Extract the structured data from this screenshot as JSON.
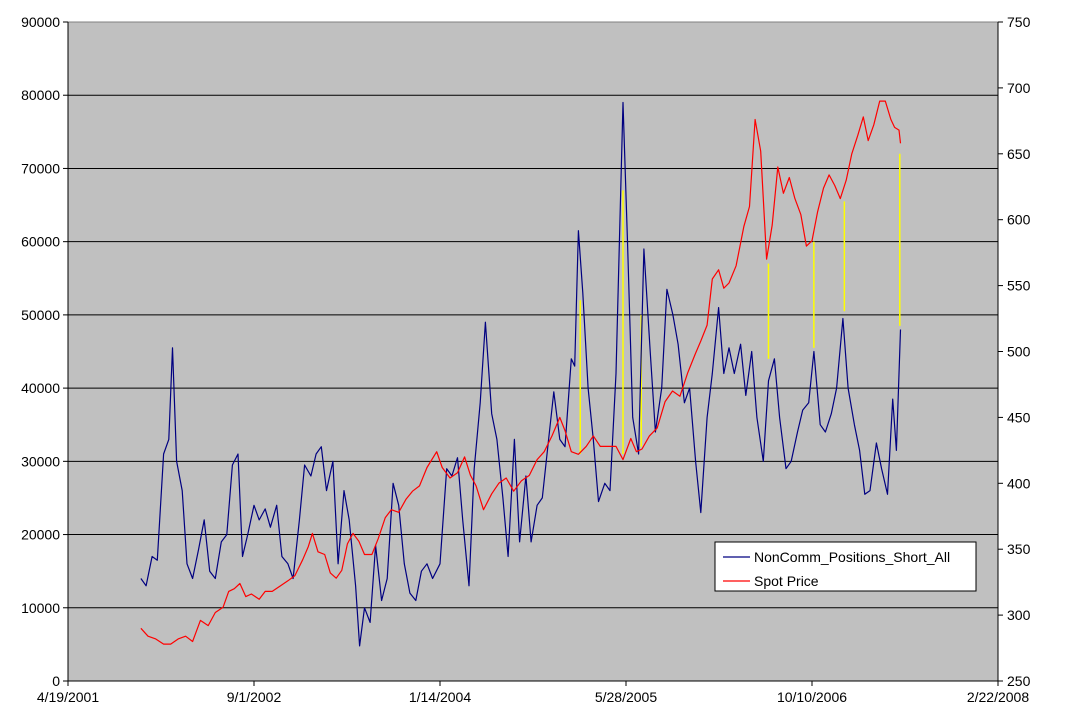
{
  "chart_data": {
    "type": "line",
    "title": "",
    "xlabel": "",
    "ylabel": "",
    "x_ticks": [
      "4/19/2001",
      "9/1/2002",
      "1/14/2004",
      "5/28/2005",
      "10/10/2006",
      "2/22/2008"
    ],
    "xlim": [
      "4/19/2001",
      "2/22/2008"
    ],
    "ylim_left": [
      0,
      90000
    ],
    "ylim_right": [
      250,
      750
    ],
    "y_ticks_left": [
      "0",
      "10000",
      "20000",
      "30000",
      "40000",
      "50000",
      "60000",
      "70000",
      "80000",
      "90000"
    ],
    "y_ticks_right": [
      "250",
      "300",
      "350",
      "400",
      "450",
      "500",
      "550",
      "600",
      "650",
      "700",
      "750"
    ],
    "grid": "horizontal",
    "plot_background": "#c0c0c0",
    "legend_position": "lower-right",
    "series": [
      {
        "name": "NonComm_Positions_Short_All",
        "axis": "left",
        "color": "#000080",
        "points": [
          [
            "2001-11-01",
            14000
          ],
          [
            "2001-11-15",
            13000
          ],
          [
            "2001-12-01",
            17000
          ],
          [
            "2001-12-15",
            16500
          ],
          [
            "2002-01-01",
            31000
          ],
          [
            "2002-01-15",
            33000
          ],
          [
            "2002-01-25",
            45500
          ],
          [
            "2002-02-05",
            30000
          ],
          [
            "2002-02-20",
            26000
          ],
          [
            "2002-03-05",
            16000
          ],
          [
            "2002-03-20",
            14000
          ],
          [
            "2002-04-05",
            18000
          ],
          [
            "2002-04-20",
            22000
          ],
          [
            "2002-05-05",
            15000
          ],
          [
            "2002-05-20",
            14000
          ],
          [
            "2002-06-05",
            19000
          ],
          [
            "2002-06-20",
            20000
          ],
          [
            "2002-07-05",
            29500
          ],
          [
            "2002-07-20",
            31000
          ],
          [
            "2002-08-01",
            17000
          ],
          [
            "2002-08-15",
            20000
          ],
          [
            "2002-09-01",
            24000
          ],
          [
            "2002-09-15",
            22000
          ],
          [
            "2002-10-01",
            23500
          ],
          [
            "2002-10-15",
            21000
          ],
          [
            "2002-11-01",
            24000
          ],
          [
            "2002-11-15",
            17000
          ],
          [
            "2002-12-01",
            16000
          ],
          [
            "2002-12-15",
            14000
          ],
          [
            "2003-01-01",
            22000
          ],
          [
            "2003-01-15",
            29500
          ],
          [
            "2003-02-01",
            28000
          ],
          [
            "2003-02-15",
            31000
          ],
          [
            "2003-03-01",
            32000
          ],
          [
            "2003-03-15",
            26000
          ],
          [
            "2003-04-01",
            30000
          ],
          [
            "2003-04-15",
            16000
          ],
          [
            "2003-05-01",
            26000
          ],
          [
            "2003-05-15",
            22000
          ],
          [
            "2003-06-01",
            13000
          ],
          [
            "2003-06-12",
            4800
          ],
          [
            "2003-06-25",
            10000
          ],
          [
            "2003-07-10",
            8000
          ],
          [
            "2003-07-25",
            18500
          ],
          [
            "2003-08-10",
            11000
          ],
          [
            "2003-08-25",
            14000
          ],
          [
            "2003-09-10",
            27000
          ],
          [
            "2003-09-25",
            24000
          ],
          [
            "2003-10-10",
            16000
          ],
          [
            "2003-10-25",
            12000
          ],
          [
            "2003-11-10",
            11000
          ],
          [
            "2003-11-25",
            15000
          ],
          [
            "2003-12-10",
            16000
          ],
          [
            "2003-12-25",
            14000
          ],
          [
            "2004-01-14",
            16000
          ],
          [
            "2004-02-01",
            29000
          ],
          [
            "2004-02-15",
            28000
          ],
          [
            "2004-03-01",
            30500
          ],
          [
            "2004-03-15",
            22000
          ],
          [
            "2004-04-01",
            13000
          ],
          [
            "2004-04-15",
            29000
          ],
          [
            "2004-05-01",
            38000
          ],
          [
            "2004-05-15",
            49000
          ],
          [
            "2004-06-01",
            36500
          ],
          [
            "2004-06-15",
            33000
          ],
          [
            "2004-07-01",
            25000
          ],
          [
            "2004-07-15",
            17000
          ],
          [
            "2004-08-01",
            33000
          ],
          [
            "2004-08-15",
            19000
          ],
          [
            "2004-09-01",
            28000
          ],
          [
            "2004-09-15",
            19000
          ],
          [
            "2004-10-01",
            24000
          ],
          [
            "2004-10-15",
            25000
          ],
          [
            "2004-11-01",
            33000
          ],
          [
            "2004-11-15",
            39500
          ],
          [
            "2004-12-01",
            33000
          ],
          [
            "2004-12-15",
            32000
          ],
          [
            "2005-01-01",
            44000
          ],
          [
            "2005-01-10",
            43000
          ],
          [
            "2005-01-20",
            61500
          ],
          [
            "2005-02-01",
            53000
          ],
          [
            "2005-02-15",
            40000
          ],
          [
            "2005-03-01",
            33000
          ],
          [
            "2005-03-15",
            24500
          ],
          [
            "2005-04-01",
            27000
          ],
          [
            "2005-04-15",
            26000
          ],
          [
            "2005-05-01",
            42000
          ],
          [
            "2005-05-20",
            79000
          ],
          [
            "2005-06-01",
            60000
          ],
          [
            "2005-06-15",
            36000
          ],
          [
            "2005-07-01",
            31000
          ],
          [
            "2005-07-15",
            59000
          ],
          [
            "2005-08-01",
            45000
          ],
          [
            "2005-08-15",
            34000
          ],
          [
            "2005-09-01",
            40000
          ],
          [
            "2005-09-15",
            53500
          ],
          [
            "2005-10-01",
            50000
          ],
          [
            "2005-10-15",
            46000
          ],
          [
            "2005-11-01",
            38000
          ],
          [
            "2005-11-15",
            40000
          ],
          [
            "2005-12-01",
            30000
          ],
          [
            "2005-12-15",
            23000
          ],
          [
            "2006-01-01",
            36000
          ],
          [
            "2006-01-15",
            42000
          ],
          [
            "2006-02-01",
            51000
          ],
          [
            "2006-02-15",
            42000
          ],
          [
            "2006-03-01",
            45500
          ],
          [
            "2006-03-15",
            42000
          ],
          [
            "2006-04-01",
            46000
          ],
          [
            "2006-04-15",
            39000
          ],
          [
            "2006-05-01",
            45000
          ],
          [
            "2006-05-15",
            36000
          ],
          [
            "2006-06-01",
            30000
          ],
          [
            "2006-06-15",
            41000
          ],
          [
            "2006-07-01",
            44000
          ],
          [
            "2006-07-15",
            36000
          ],
          [
            "2006-08-01",
            29000
          ],
          [
            "2006-08-15",
            30000
          ],
          [
            "2006-09-01",
            34000
          ],
          [
            "2006-09-15",
            37000
          ],
          [
            "2006-10-01",
            38000
          ],
          [
            "2006-10-15",
            45000
          ],
          [
            "2006-11-01",
            35000
          ],
          [
            "2006-11-15",
            34000
          ],
          [
            "2006-12-01",
            36500
          ],
          [
            "2006-12-15",
            40000
          ],
          [
            "2007-01-01",
            49500
          ],
          [
            "2007-01-15",
            40000
          ],
          [
            "2007-02-01",
            35000
          ],
          [
            "2007-02-15",
            31500
          ],
          [
            "2007-03-01",
            25500
          ],
          [
            "2007-03-15",
            26000
          ],
          [
            "2007-04-01",
            32500
          ],
          [
            "2007-04-15",
            29000
          ],
          [
            "2007-05-01",
            25500
          ],
          [
            "2007-05-15",
            38500
          ],
          [
            "2007-05-25",
            31500
          ],
          [
            "2007-06-05",
            48000
          ]
        ]
      },
      {
        "name": "Spot Price",
        "axis": "right",
        "color": "#ff0000",
        "points": [
          [
            "2001-11-01",
            290
          ],
          [
            "2001-11-20",
            284
          ],
          [
            "2001-12-10",
            282
          ],
          [
            "2002-01-01",
            278
          ],
          [
            "2002-01-20",
            278
          ],
          [
            "2002-02-10",
            282
          ],
          [
            "2002-03-01",
            284
          ],
          [
            "2002-03-20",
            280
          ],
          [
            "2002-04-10",
            296
          ],
          [
            "2002-05-01",
            292
          ],
          [
            "2002-05-20",
            302
          ],
          [
            "2002-06-10",
            306
          ],
          [
            "2002-06-25",
            318
          ],
          [
            "2002-07-10",
            320
          ],
          [
            "2002-07-25",
            324
          ],
          [
            "2002-08-10",
            314
          ],
          [
            "2002-08-25",
            316
          ],
          [
            "2002-09-15",
            312
          ],
          [
            "2002-10-01",
            318
          ],
          [
            "2002-10-20",
            318
          ],
          [
            "2002-11-10",
            322
          ],
          [
            "2002-12-01",
            326
          ],
          [
            "2002-12-20",
            330
          ],
          [
            "2003-01-10",
            342
          ],
          [
            "2003-01-25",
            352
          ],
          [
            "2003-02-05",
            362
          ],
          [
            "2003-02-20",
            348
          ],
          [
            "2003-03-10",
            346
          ],
          [
            "2003-03-25",
            332
          ],
          [
            "2003-04-10",
            328
          ],
          [
            "2003-04-25",
            334
          ],
          [
            "2003-05-10",
            354
          ],
          [
            "2003-05-25",
            362
          ],
          [
            "2003-06-10",
            356
          ],
          [
            "2003-06-25",
            346
          ],
          [
            "2003-07-15",
            346
          ],
          [
            "2003-08-01",
            358
          ],
          [
            "2003-08-20",
            374
          ],
          [
            "2003-09-05",
            380
          ],
          [
            "2003-09-25",
            378
          ],
          [
            "2003-10-15",
            388
          ],
          [
            "2003-11-01",
            394
          ],
          [
            "2003-11-20",
            398
          ],
          [
            "2003-12-10",
            412
          ],
          [
            "2004-01-05",
            424
          ],
          [
            "2004-01-20",
            412
          ],
          [
            "2004-02-10",
            404
          ],
          [
            "2004-03-01",
            408
          ],
          [
            "2004-03-20",
            420
          ],
          [
            "2004-04-05",
            406
          ],
          [
            "2004-04-20",
            398
          ],
          [
            "2004-05-10",
            380
          ],
          [
            "2004-06-01",
            392
          ],
          [
            "2004-06-20",
            400
          ],
          [
            "2004-07-10",
            404
          ],
          [
            "2004-07-30",
            394
          ],
          [
            "2004-08-20",
            402
          ],
          [
            "2004-09-10",
            406
          ],
          [
            "2004-10-01",
            418
          ],
          [
            "2004-10-20",
            424
          ],
          [
            "2004-11-10",
            436
          ],
          [
            "2004-12-01",
            450
          ],
          [
            "2004-12-15",
            440
          ],
          [
            "2005-01-01",
            424
          ],
          [
            "2005-01-20",
            422
          ],
          [
            "2005-02-10",
            428
          ],
          [
            "2005-03-01",
            436
          ],
          [
            "2005-03-20",
            428
          ],
          [
            "2005-04-10",
            428
          ],
          [
            "2005-05-01",
            428
          ],
          [
            "2005-05-20",
            418
          ],
          [
            "2005-06-10",
            434
          ],
          [
            "2005-06-25",
            424
          ],
          [
            "2005-07-10",
            426
          ],
          [
            "2005-07-30",
            436
          ],
          [
            "2005-08-20",
            442
          ],
          [
            "2005-09-10",
            462
          ],
          [
            "2005-09-30",
            470
          ],
          [
            "2005-10-20",
            466
          ],
          [
            "2005-11-10",
            484
          ],
          [
            "2005-11-30",
            498
          ],
          [
            "2005-12-15",
            508
          ],
          [
            "2006-01-01",
            520
          ],
          [
            "2006-01-15",
            555
          ],
          [
            "2006-02-01",
            562
          ],
          [
            "2006-02-15",
            548
          ],
          [
            "2006-03-01",
            552
          ],
          [
            "2006-03-20",
            565
          ],
          [
            "2006-04-10",
            595
          ],
          [
            "2006-04-25",
            610
          ],
          [
            "2006-05-10",
            676
          ],
          [
            "2006-05-25",
            652
          ],
          [
            "2006-06-10",
            570
          ],
          [
            "2006-06-25",
            596
          ],
          [
            "2006-07-10",
            640
          ],
          [
            "2006-07-25",
            620
          ],
          [
            "2006-08-10",
            632
          ],
          [
            "2006-08-25",
            616
          ],
          [
            "2006-09-10",
            604
          ],
          [
            "2006-09-25",
            580
          ],
          [
            "2006-10-10",
            584
          ],
          [
            "2006-10-25",
            606
          ],
          [
            "2006-11-10",
            624
          ],
          [
            "2006-11-25",
            634
          ],
          [
            "2006-12-10",
            626
          ],
          [
            "2006-12-25",
            616
          ],
          [
            "2007-01-10",
            630
          ],
          [
            "2007-01-25",
            650
          ],
          [
            "2007-02-10",
            664
          ],
          [
            "2007-02-25",
            678
          ],
          [
            "2007-03-10",
            660
          ],
          [
            "2007-03-25",
            672
          ],
          [
            "2007-04-10",
            690
          ],
          [
            "2007-04-25",
            690
          ],
          [
            "2007-05-10",
            676
          ],
          [
            "2007-05-20",
            670
          ],
          [
            "2007-06-01",
            668
          ],
          [
            "2007-06-05",
            658
          ]
        ]
      }
    ],
    "connector_color": "#ffff00",
    "connectors": [
      {
        "date": "2005-01-25",
        "from_left": 31000,
        "to_left": 52000
      },
      {
        "date": "2005-05-20",
        "from_left": 31000,
        "to_left": 67000
      },
      {
        "date": "2005-07-08",
        "from_left": 32000,
        "to_left": 50000
      },
      {
        "date": "2006-06-15",
        "from_left": 44000,
        "to_left": 57000
      },
      {
        "date": "2006-10-15",
        "from_left": 45500,
        "to_left": 60000
      },
      {
        "date": "2007-01-05",
        "from_left": 50500,
        "to_left": 65500
      },
      {
        "date": "2007-06-03",
        "from_left": 48500,
        "to_left": 72000
      }
    ]
  }
}
